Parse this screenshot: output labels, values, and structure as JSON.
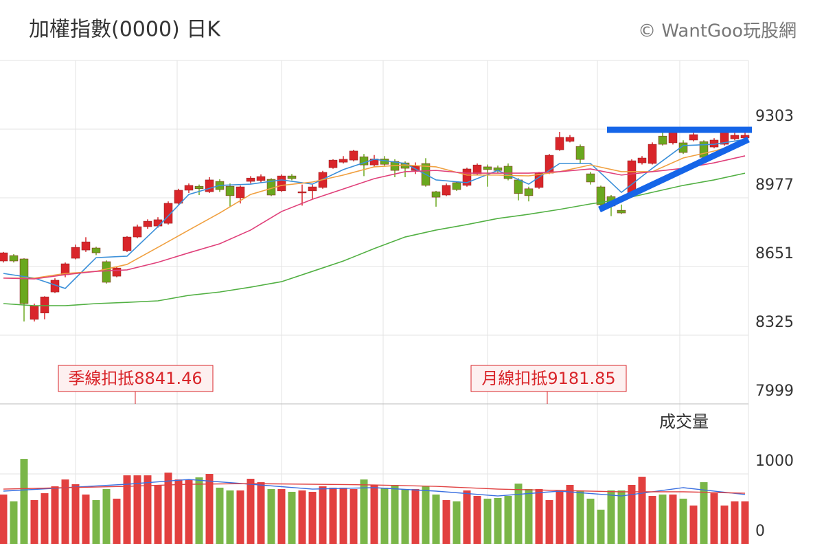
{
  "header": {
    "title": "加權指數(0000) 日K",
    "watermark": "© WantGoo玩股網"
  },
  "chart_data": [
    {
      "type": "candlestick",
      "up_color": "#d9252a",
      "down_color": "#6aa81f",
      "ylim": [
        7999,
        9629
      ],
      "yticks": [
        7999,
        8325,
        8651,
        8977,
        9303
      ],
      "grid": true,
      "candles": [
        [
          8677,
          8720,
          8670,
          8716
        ],
        [
          8703,
          8710,
          8670,
          8677
        ],
        [
          8687,
          8690,
          8390,
          8475
        ],
        [
          8400,
          8475,
          8390,
          8465
        ],
        [
          8430,
          8510,
          8400,
          8507
        ],
        [
          8530,
          8595,
          8525,
          8586
        ],
        [
          8612,
          8670,
          8600,
          8664
        ],
        [
          8690,
          8755,
          8685,
          8742
        ],
        [
          8729,
          8790,
          8720,
          8768
        ],
        [
          8739,
          8745,
          8705,
          8716
        ],
        [
          8674,
          8680,
          8570,
          8576
        ],
        [
          8605,
          8650,
          8600,
          8644
        ],
        [
          8726,
          8795,
          8720,
          8791
        ],
        [
          8791,
          8850,
          8785,
          8840
        ],
        [
          8840,
          8875,
          8830,
          8866
        ],
        [
          8843,
          8885,
          8835,
          8873
        ],
        [
          8856,
          8960,
          8850,
          8951
        ],
        [
          8951,
          9020,
          8945,
          9013
        ],
        [
          9013,
          9045,
          9000,
          9036
        ],
        [
          9032,
          9040,
          8990,
          9020
        ],
        [
          9006,
          9075,
          9000,
          9062
        ],
        [
          9055,
          9065,
          9005,
          9016
        ],
        [
          9032,
          9045,
          8935,
          8987
        ],
        [
          8977,
          9035,
          8950,
          9029
        ],
        [
          9055,
          9080,
          9045,
          9071
        ],
        [
          9059,
          9088,
          9050,
          9078
        ],
        [
          9065,
          9070,
          8985,
          8990
        ],
        [
          9010,
          9088,
          9005,
          9081
        ],
        [
          9081,
          9090,
          9060,
          9068
        ],
        [
          9000,
          9040,
          8940,
          9006
        ],
        [
          9010,
          9040,
          8970,
          9029
        ],
        [
          9026,
          9105,
          9020,
          9098
        ],
        [
          9120,
          9160,
          9115,
          9156
        ],
        [
          9146,
          9175,
          9140,
          9160
        ],
        [
          9156,
          9205,
          9150,
          9199
        ],
        [
          9172,
          9185,
          9080,
          9133
        ],
        [
          9133,
          9180,
          9125,
          9162
        ],
        [
          9162,
          9175,
          9125,
          9136
        ],
        [
          9150,
          9160,
          9075,
          9107
        ],
        [
          9143,
          9150,
          9075,
          9117
        ],
        [
          9107,
          9145,
          9090,
          9127
        ],
        [
          9140,
          9165,
          9030,
          9036
        ],
        [
          9006,
          9010,
          8935,
          8980
        ],
        [
          8990,
          9045,
          8985,
          9036
        ],
        [
          9049,
          9055,
          9010,
          9016
        ],
        [
          9036,
          9120,
          9030,
          9114
        ],
        [
          9091,
          9140,
          9085,
          9133
        ],
        [
          9124,
          9135,
          9030,
          9111
        ],
        [
          9120,
          9130,
          9095,
          9107
        ],
        [
          9127,
          9140,
          9060,
          9068
        ],
        [
          9062,
          9070,
          8965,
          8997
        ],
        [
          9020,
          9030,
          8960,
          8987
        ],
        [
          9026,
          9100,
          9020,
          9094
        ],
        [
          9094,
          9185,
          9090,
          9179
        ],
        [
          9205,
          9290,
          9200,
          9264
        ],
        [
          9245,
          9275,
          9240,
          9264
        ],
        [
          9221,
          9230,
          9140,
          9159
        ],
        [
          9091,
          9100,
          9040,
          9052
        ],
        [
          9029,
          9035,
          8935,
          8944
        ],
        [
          8983,
          8990,
          8890,
          8938
        ],
        [
          8918,
          8945,
          8900,
          8905
        ],
        [
          8997,
          9160,
          8990,
          9153
        ],
        [
          9143,
          9175,
          9135,
          9166
        ],
        [
          9140,
          9240,
          9135,
          9231
        ],
        [
          9270,
          9290,
          9225,
          9231
        ],
        [
          9238,
          9300,
          9230,
          9290
        ],
        [
          9238,
          9250,
          9185,
          9192
        ],
        [
          9251,
          9290,
          9245,
          9277
        ],
        [
          9244,
          9250,
          9160,
          9169
        ],
        [
          9218,
          9260,
          9212,
          9251
        ],
        [
          9231,
          9295,
          9225,
          9287
        ],
        [
          9257,
          9285,
          9250,
          9274
        ],
        [
          9261,
          9285,
          9255,
          9274
        ]
      ],
      "moving_averages": [
        {
          "color": "#3a8fd9",
          "x": [
            0,
            3,
            6,
            9,
            12,
            15,
            18,
            21,
            24,
            27,
            30,
            33,
            36,
            39,
            42,
            45,
            48,
            51,
            54,
            57,
            60,
            63,
            66,
            69,
            72
          ],
          "values": [
            8618,
            8596,
            8547,
            8693,
            8700,
            8840,
            8993,
            9036,
            9042,
            9062,
            9042,
            9111,
            9160,
            9140,
            9062,
            9049,
            9107,
            9042,
            9140,
            9140,
            9003,
            9117,
            9225,
            9231,
            9254
          ]
        },
        {
          "color": "#f0a040",
          "x": [
            0,
            3,
            6,
            9,
            12,
            15,
            18,
            21,
            24,
            27,
            30,
            33,
            36,
            39,
            42,
            45,
            48,
            51,
            54,
            57,
            60,
            63,
            66,
            69,
            72
          ],
          "values": [
            8596,
            8596,
            8618,
            8628,
            8661,
            8742,
            8824,
            8905,
            8993,
            9036,
            9052,
            9085,
            9124,
            9133,
            9124,
            9085,
            9085,
            9081,
            9101,
            9133,
            9101,
            9101,
            9166,
            9199,
            9238
          ]
        },
        {
          "color": "#e0407a",
          "x": [
            0,
            3,
            6,
            9,
            12,
            15,
            18,
            21,
            24,
            27,
            30,
            33,
            36,
            39,
            42,
            45,
            48,
            51,
            54,
            57,
            60,
            63,
            66,
            69,
            72
          ],
          "values": [
            8596,
            8592,
            8612,
            8628,
            8635,
            8671,
            8716,
            8759,
            8824,
            8912,
            8970,
            9019,
            9068,
            9101,
            9107,
            9094,
            9094,
            9094,
            9101,
            9114,
            9085,
            9101,
            9117,
            9143,
            9176
          ]
        },
        {
          "color": "#52b043",
          "x": [
            0,
            3,
            6,
            9,
            12,
            15,
            18,
            21,
            24,
            27,
            30,
            33,
            36,
            39,
            42,
            45,
            48,
            51,
            54,
            57,
            60,
            63,
            66,
            69,
            72
          ],
          "values": [
            8475,
            8465,
            8465,
            8475,
            8481,
            8488,
            8514,
            8530,
            8553,
            8579,
            8628,
            8677,
            8736,
            8791,
            8824,
            8850,
            8879,
            8899,
            8922,
            8948,
            8970,
            9003,
            9036,
            9062,
            9094
          ]
        }
      ],
      "annotations": [
        "季線扣抵8841.46",
        "月線扣抵9181.85"
      ]
    },
    {
      "type": "bar",
      "title": "成交量",
      "ylim": [
        0,
        2000
      ],
      "yticks": [
        0,
        1000
      ],
      "values": [
        706,
        608,
        1215,
        627,
        725,
        823,
        921,
        853,
        706,
        627,
        784,
        647,
        980,
        980,
        980,
        833,
        1019,
        921,
        921,
        951,
        1000,
        804,
        764,
        764,
        931,
        882,
        784,
        784,
        745,
        764,
        745,
        823,
        804,
        804,
        784,
        921,
        843,
        804,
        843,
        784,
        784,
        823,
        706,
        627,
        608,
        764,
        686,
        647,
        657,
        686,
        862,
        784,
        784,
        627,
        764,
        843,
        764,
        647,
        490,
        764,
        764,
        843,
        960,
        686,
        706,
        706,
        647,
        549,
        882,
        725,
        549,
        608,
        608
      ],
      "lines": [
        {
          "color": "#3a6fe0",
          "x": [
            0,
            6,
            12,
            18,
            24,
            30,
            36,
            42,
            48,
            54,
            60,
            66,
            72
          ],
          "values": [
            755,
            804,
            853,
            921,
            853,
            784,
            804,
            755,
            686,
            755,
            686,
            804,
            706
          ]
        },
        {
          "color": "#e04040",
          "x": [
            0,
            6,
            12,
            18,
            24,
            30,
            36,
            42,
            48,
            54,
            60,
            66,
            72
          ],
          "values": [
            784,
            804,
            823,
            853,
            862,
            853,
            843,
            823,
            784,
            764,
            745,
            745,
            725
          ]
        }
      ]
    }
  ]
}
